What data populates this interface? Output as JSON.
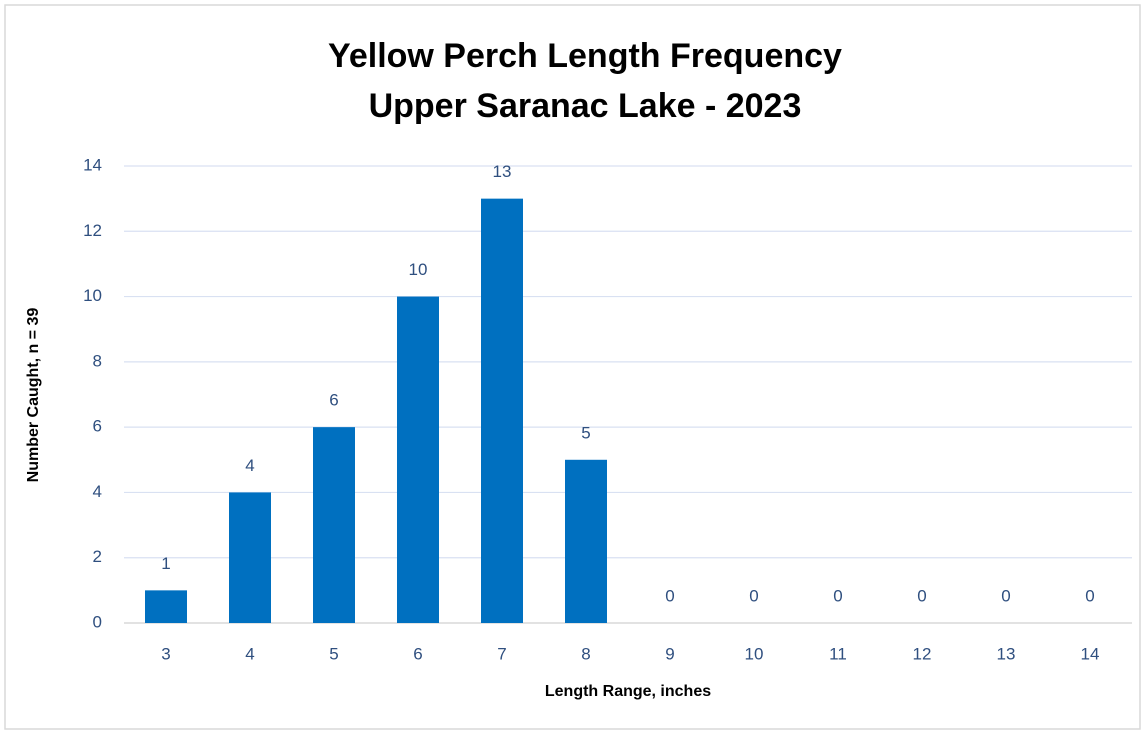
{
  "chart_data": {
    "type": "bar",
    "title": [
      "Yellow Perch Length Frequency",
      "Upper Saranac Lake - 2023"
    ],
    "x_label": "Length Range, inches",
    "y_label": "Number Caught, n = 39",
    "categories": [
      "3",
      "4",
      "5",
      "6",
      "7",
      "8",
      "9",
      "10",
      "11",
      "12",
      "13",
      "14"
    ],
    "values": [
      1,
      4,
      6,
      10,
      13,
      5,
      0,
      0,
      0,
      0,
      0,
      0
    ],
    "color": "#0070c0",
    "ylim": [
      0,
      14
    ],
    "yticks": [
      0,
      2,
      4,
      6,
      8,
      10,
      12,
      14
    ],
    "grid": true
  }
}
